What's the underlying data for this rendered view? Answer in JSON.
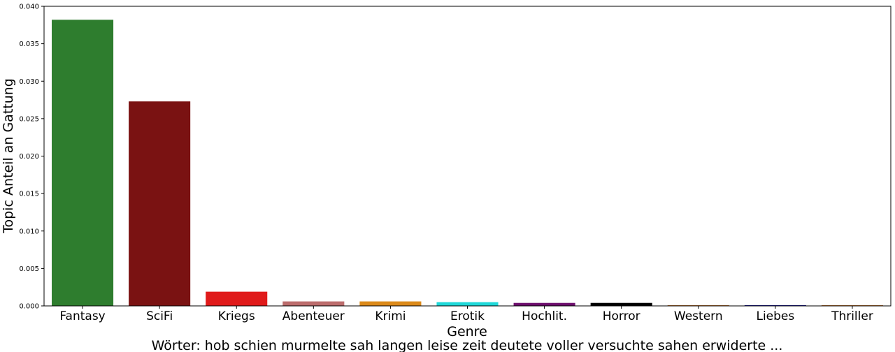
{
  "chart_data": {
    "type": "bar",
    "title": "",
    "xlabel": "Genre",
    "ylabel": "Topic Anteil an Gattung",
    "ylim": [
      0,
      0.04
    ],
    "yticks": [
      "0.000",
      "0.005",
      "0.010",
      "0.015",
      "0.020",
      "0.025",
      "0.030",
      "0.035",
      "0.040"
    ],
    "categories": [
      "Fantasy",
      "SciFi",
      "Kriegs",
      "Abenteuer",
      "Krimi",
      "Erotik",
      "Hochlit.",
      "Horror",
      "Western",
      "Liebes",
      "Thriller"
    ],
    "values": [
      0.0382,
      0.0273,
      0.0019,
      0.0006,
      0.0006,
      0.0005,
      0.0004,
      0.0004,
      0.0001,
      0.0001,
      0.0001
    ],
    "colors": [
      "#2e7d2e",
      "#7a1212",
      "#e01a1a",
      "#bc6d6d",
      "#dc8a1a",
      "#1fd8d8",
      "#6e0f6e",
      "#000000",
      "#c87832",
      "#16169a",
      "#c87832"
    ],
    "grid": false,
    "legend": "none",
    "caption": "Wörter: hob schien murmelte sah langen leise zeit deutete voller versuchte sahen erwiderte ..."
  }
}
